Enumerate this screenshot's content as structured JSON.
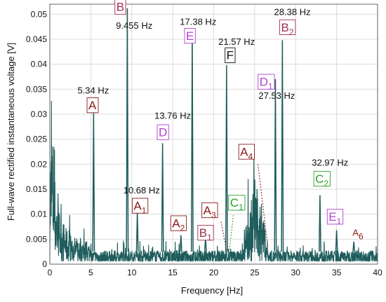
{
  "chart_data": {
    "type": "line",
    "title": "",
    "xlabel": "Frequency [Hz]",
    "ylabel": "Full-wave rectified instantaneous voltage [V]",
    "xlim": [
      0,
      40
    ],
    "ylim": [
      0,
      0.052
    ],
    "xticks": [
      "0",
      "5",
      "10",
      "15",
      "20",
      "25",
      "30",
      "35",
      "40"
    ],
    "yticks": [
      "0",
      "0.005",
      "0.01",
      "0.015",
      "0.02",
      "0.025",
      "0.03",
      "0.035",
      "0.04",
      "0.045",
      "0.05"
    ],
    "grid": true,
    "line_color": "#1f5c5c",
    "series": [
      {
        "name": "",
        "noise_floor": 0.0025,
        "low_freq": [
          {
            "x": 0.05,
            "y": 0.0215
          },
          {
            "x": 0.3,
            "y": 0.025
          },
          {
            "x": 0.6,
            "y": 0.0165
          },
          {
            "x": 0.9,
            "y": 0.012
          },
          {
            "x": 1.2,
            "y": 0.0095
          },
          {
            "x": 1.6,
            "y": 0.008
          },
          {
            "x": 2.0,
            "y": 0.0065
          },
          {
            "x": 2.5,
            "y": 0.0055
          },
          {
            "x": 3.0,
            "y": 0.005
          },
          {
            "x": 4.0,
            "y": 0.0045
          },
          {
            "x": 5.0,
            "y": 0.004
          }
        ],
        "hump": [
          {
            "x": 23.5,
            "y": 0.005
          },
          {
            "x": 24.2,
            "y": 0.009
          },
          {
            "x": 24.6,
            "y": 0.012
          },
          {
            "x": 24.9,
            "y": 0.0155
          },
          {
            "x": 25.1,
            "y": 0.018
          },
          {
            "x": 25.3,
            "y": 0.0135
          },
          {
            "x": 25.6,
            "y": 0.01
          },
          {
            "x": 25.9,
            "y": 0.0135
          },
          {
            "x": 26.2,
            "y": 0.007
          },
          {
            "x": 26.6,
            "y": 0.004
          }
        ],
        "peaks": [
          {
            "x": 5.34,
            "y": 0.0302
          },
          {
            "x": 9.455,
            "y": 0.0512
          },
          {
            "x": 10.68,
            "y": 0.0105
          },
          {
            "x": 13.76,
            "y": 0.0242
          },
          {
            "x": 16.0,
            "y": 0.0058
          },
          {
            "x": 17.38,
            "y": 0.0468
          },
          {
            "x": 19.0,
            "y": 0.0052
          },
          {
            "x": 21.57,
            "y": 0.0398
          },
          {
            "x": 27.53,
            "y": 0.037
          },
          {
            "x": 28.38,
            "y": 0.0448
          },
          {
            "x": 32.97,
            "y": 0.0138
          },
          {
            "x": 35.0,
            "y": 0.0068
          },
          {
            "x": 37.1,
            "y": 0.0045
          }
        ]
      }
    ],
    "annotations": [
      {
        "id": "lbl-B",
        "text": "B",
        "color": "#a0304e",
        "box": true,
        "x": 8.6,
        "y": 0.0515
      },
      {
        "id": "lbl-B-freq",
        "text": "9.455 Hz",
        "color": "#111111",
        "box": false,
        "x": 10.3,
        "y": 0.0477
      },
      {
        "id": "lbl-E-freq",
        "text": "17.38 Hz",
        "color": "#111111",
        "box": false,
        "x": 18.1,
        "y": 0.0485
      },
      {
        "id": "lbl-E",
        "text": "E",
        "color": "#b040d0",
        "box": true,
        "x": 17.1,
        "y": 0.0457
      },
      {
        "id": "lbl-B2-freq",
        "text": "28.38 Hz",
        "color": "#111111",
        "box": false,
        "x": 29.6,
        "y": 0.0505
      },
      {
        "id": "lbl-B2",
        "text": "B",
        "sub": "2",
        "color": "#a0304e",
        "box": true,
        "x": 29.0,
        "y": 0.0474
      },
      {
        "id": "lbl-F-freq",
        "text": "21.57 Hz",
        "color": "#111111",
        "box": false,
        "x": 22.8,
        "y": 0.0445
      },
      {
        "id": "lbl-F",
        "text": "F",
        "color": "#111111",
        "box": true,
        "x": 22.0,
        "y": 0.0418
      },
      {
        "id": "lbl-D1",
        "text": "D",
        "sub": "1",
        "color": "#b040d0",
        "box": true,
        "x": 26.4,
        "y": 0.0365
      },
      {
        "id": "lbl-D1-freq",
        "text": "27.53 Hz",
        "color": "#111111",
        "box": false,
        "x": 27.7,
        "y": 0.0337
      },
      {
        "id": "lbl-A-freq",
        "text": "5.34 Hz",
        "color": "#111111",
        "box": false,
        "x": 5.3,
        "y": 0.0348
      },
      {
        "id": "lbl-A",
        "text": "A",
        "color": "#8b1a1a",
        "box": true,
        "x": 5.2,
        "y": 0.0318
      },
      {
        "id": "lbl-D-freq",
        "text": "13.76 Hz",
        "color": "#111111",
        "box": false,
        "x": 15.0,
        "y": 0.0297
      },
      {
        "id": "lbl-D",
        "text": "D",
        "color": "#b040d0",
        "box": true,
        "x": 13.8,
        "y": 0.0264
      },
      {
        "id": "lbl-A4",
        "text": "A",
        "sub": "4",
        "color": "#8b1a1a",
        "box": true,
        "x": 24.0,
        "y": 0.0225
      },
      {
        "id": "lbl-C2-freq",
        "text": "32.97 Hz",
        "color": "#111111",
        "box": false,
        "x": 34.2,
        "y": 0.0203
      },
      {
        "id": "lbl-C2",
        "text": "C",
        "sub": "2",
        "color": "#2aa02a",
        "box": true,
        "x": 33.2,
        "y": 0.0171
      },
      {
        "id": "lbl-A1-freq",
        "text": "10.68 Hz",
        "color": "#111111",
        "box": false,
        "x": 11.2,
        "y": 0.0148
      },
      {
        "id": "lbl-A1",
        "text": "A",
        "sub": "1",
        "color": "#8b1a1a",
        "box": true,
        "x": 11.0,
        "y": 0.0117
      },
      {
        "id": "lbl-A3",
        "text": "A",
        "sub": "3",
        "color": "#8b1a1a",
        "box": true,
        "x": 19.5,
        "y": 0.0108
      },
      {
        "id": "lbl-C1",
        "text": "C",
        "sub": "1",
        "color": "#2aa02a",
        "box": true,
        "x": 22.8,
        "y": 0.0123
      },
      {
        "id": "lbl-A2",
        "text": "A",
        "sub": "2",
        "color": "#8b1a1a",
        "box": true,
        "x": 15.7,
        "y": 0.0082
      },
      {
        "id": "lbl-B1",
        "text": "B",
        "sub": "1",
        "color": "#a0304e",
        "box": true,
        "x": 19.0,
        "y": 0.0063
      },
      {
        "id": "lbl-E1",
        "text": "E",
        "sub": "1",
        "color": "#b040d0",
        "box": true,
        "x": 34.8,
        "y": 0.0095
      },
      {
        "id": "lbl-A6",
        "text": "A",
        "sub": "6",
        "color": "#8b1a1a",
        "box": false,
        "x": 37.6,
        "y": 0.0063
      }
    ],
    "leaders": [
      {
        "from": [
          20.9,
          0.0085
        ],
        "to": [
          21.6,
          0.0025
        ],
        "color": "#8b1a1a"
      },
      {
        "from": [
          22.4,
          0.0098
        ],
        "to": [
          21.9,
          0.0025
        ],
        "color": "#2aa02a"
      },
      {
        "from": [
          25.4,
          0.02
        ],
        "to": [
          26.6,
          0.0035
        ],
        "color": "#8b1a1a"
      }
    ]
  }
}
